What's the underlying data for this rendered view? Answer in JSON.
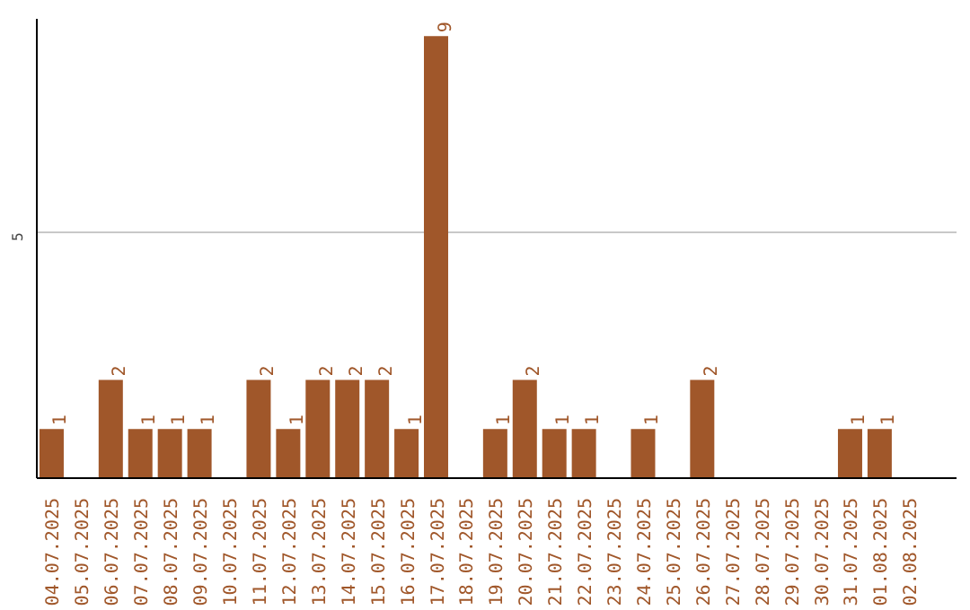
{
  "chart_data": {
    "type": "bar",
    "categories": [
      "04.07.2025",
      "05.07.2025",
      "06.07.2025",
      "07.07.2025",
      "08.07.2025",
      "09.07.2025",
      "10.07.2025",
      "11.07.2025",
      "12.07.2025",
      "13.07.2025",
      "14.07.2025",
      "15.07.2025",
      "16.07.2025",
      "17.07.2025",
      "18.07.2025",
      "19.07.2025",
      "20.07.2025",
      "21.07.2025",
      "22.07.2025",
      "23.07.2025",
      "24.07.2025",
      "25.07.2025",
      "26.07.2025",
      "27.07.2025",
      "28.07.2025",
      "29.07.2025",
      "30.07.2025",
      "31.07.2025",
      "01.08.2025",
      "02.08.2025"
    ],
    "values": [
      1,
      0,
      2,
      1,
      1,
      1,
      0,
      2,
      1,
      2,
      2,
      2,
      1,
      9,
      0,
      1,
      2,
      1,
      1,
      0,
      1,
      0,
      2,
      0,
      0,
      0,
      0,
      1,
      1,
      0
    ],
    "value_labels": [
      "1",
      null,
      "2",
      "1",
      "1",
      "1",
      null,
      "2",
      "1",
      "2",
      "2",
      "2",
      "1",
      "9",
      null,
      "1",
      "2",
      "1",
      "1",
      null,
      "1",
      null,
      "2",
      null,
      null,
      null,
      null,
      "1",
      "1",
      null
    ],
    "color": "#a0572a",
    "ylim": [
      0,
      9.35
    ],
    "yticks": [
      5
    ],
    "grid": "y"
  }
}
